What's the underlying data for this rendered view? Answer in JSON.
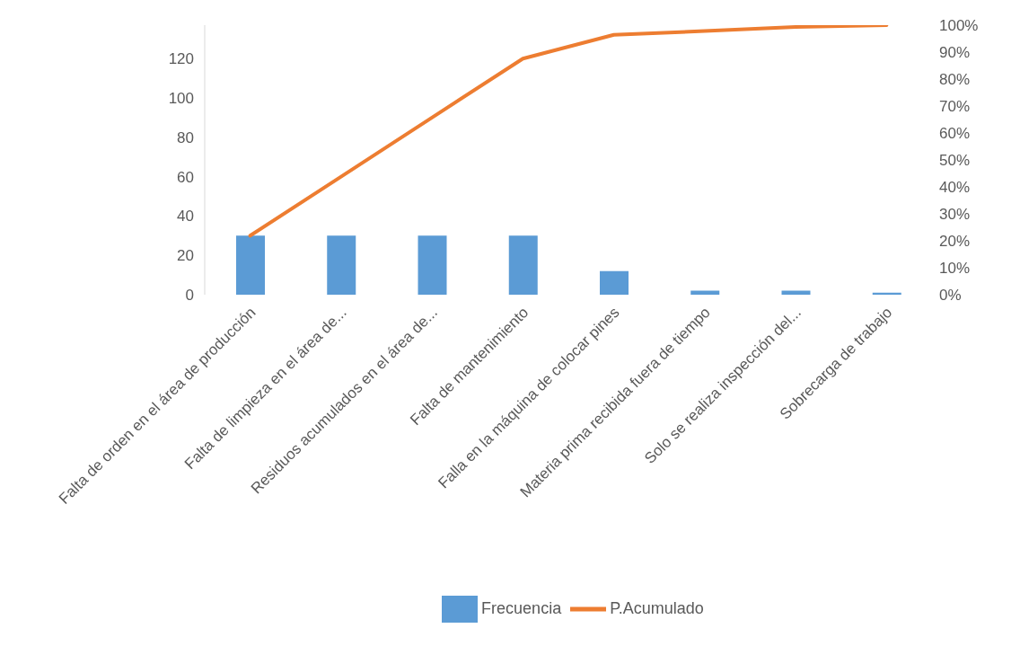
{
  "chart_data": {
    "type": "bar",
    "categories": [
      "Falta de orden en el área de producción",
      "Falta de limpieza en el área de...",
      "Residuos acumulados en el área de...",
      "Falta de mantenimiento",
      "Falla en la máquina de colocar pines",
      "Materia prima recibida fuera de tiempo",
      "Solo se realiza inspección del...",
      "Sobrecarga de trabajo"
    ],
    "series": [
      {
        "name": "Frecuencia",
        "color": "#5b9bd5",
        "values": [
          30,
          30,
          30,
          30,
          12,
          2,
          2,
          1
        ]
      },
      {
        "name": "P.Acumulado",
        "type": "line",
        "axis": "y2",
        "color": "#ed7d31",
        "values": [
          21.9,
          43.8,
          65.7,
          87.6,
          96.4,
          97.8,
          99.3,
          100
        ]
      }
    ],
    "ylim": [
      0,
      137
    ],
    "yticks": [
      0,
      20,
      40,
      60,
      80,
      100,
      120
    ],
    "y2lim": [
      0,
      100
    ],
    "y2ticks": [
      {
        "value": 0,
        "label": "0%"
      },
      {
        "value": 10,
        "label": "10%"
      },
      {
        "value": 20,
        "label": "20%"
      },
      {
        "value": 30,
        "label": "30%"
      },
      {
        "value": 40,
        "label": "40%"
      },
      {
        "value": 50,
        "label": "50%"
      },
      {
        "value": 60,
        "label": "60%"
      },
      {
        "value": 70,
        "label": "70%"
      },
      {
        "value": 80,
        "label": "80%"
      },
      {
        "value": 90,
        "label": "90%"
      },
      {
        "value": 100,
        "label": "100%"
      }
    ],
    "legend": "bottom",
    "marker": "none"
  }
}
